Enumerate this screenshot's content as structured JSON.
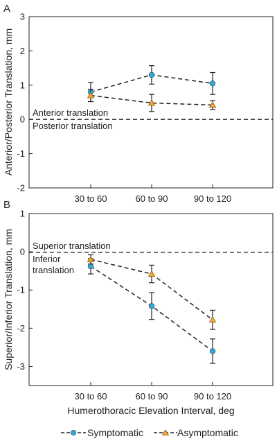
{
  "chart_data": [
    {
      "type": "line",
      "panel": "A",
      "categories": [
        "30 to 60",
        "60 to 90",
        "90 to 120"
      ],
      "ylabel": "Anterior/Posterior Translation, mm",
      "ylim": [
        -2,
        3
      ],
      "yticks": [
        "-2",
        "-1",
        "0",
        "1",
        "2",
        "3"
      ],
      "reference_line": 0,
      "annotations": [
        "Anterior translation",
        "Posterior translation"
      ],
      "series": [
        {
          "name": "Symptomatic",
          "marker": "circle",
          "color": "#39a8d4",
          "values": [
            0.8,
            1.3,
            1.05
          ],
          "error": [
            0.28,
            0.27,
            0.32
          ]
        },
        {
          "name": "Asymptomatic",
          "marker": "triangle",
          "color": "#f0a93a",
          "values": [
            0.7,
            0.48,
            0.42
          ],
          "error": [
            0.18,
            0.25,
            0.13
          ]
        }
      ]
    },
    {
      "type": "line",
      "panel": "B",
      "categories": [
        "30 to 60",
        "60 to 90",
        "90 to 120"
      ],
      "xlabel": "Humerothoracic Elevation Interval, deg",
      "ylabel": "Superior/Inferior Translation, mm",
      "ylim": [
        -3.5,
        1
      ],
      "yticks": [
        "-3",
        "-2",
        "-1",
        "0",
        "1"
      ],
      "reference_line": 0,
      "annotations": [
        "Superior translation",
        "Inferior",
        "translation"
      ],
      "series": [
        {
          "name": "Symptomatic",
          "marker": "circle",
          "color": "#39a8d4",
          "values": [
            -0.38,
            -1.42,
            -2.6
          ],
          "error": [
            0.2,
            0.35,
            0.32
          ]
        },
        {
          "name": "Asymptomatic",
          "marker": "triangle",
          "color": "#f0a93a",
          "values": [
            -0.2,
            -0.58,
            -1.78
          ],
          "error": [
            0.12,
            0.23,
            0.25
          ]
        }
      ]
    }
  ],
  "legend": {
    "position": "bottom",
    "items": [
      {
        "label": "Symptomatic",
        "marker": "circle",
        "color": "#39a8d4"
      },
      {
        "label": "Asymptomatic",
        "marker": "triangle",
        "color": "#f0a93a"
      }
    ]
  }
}
